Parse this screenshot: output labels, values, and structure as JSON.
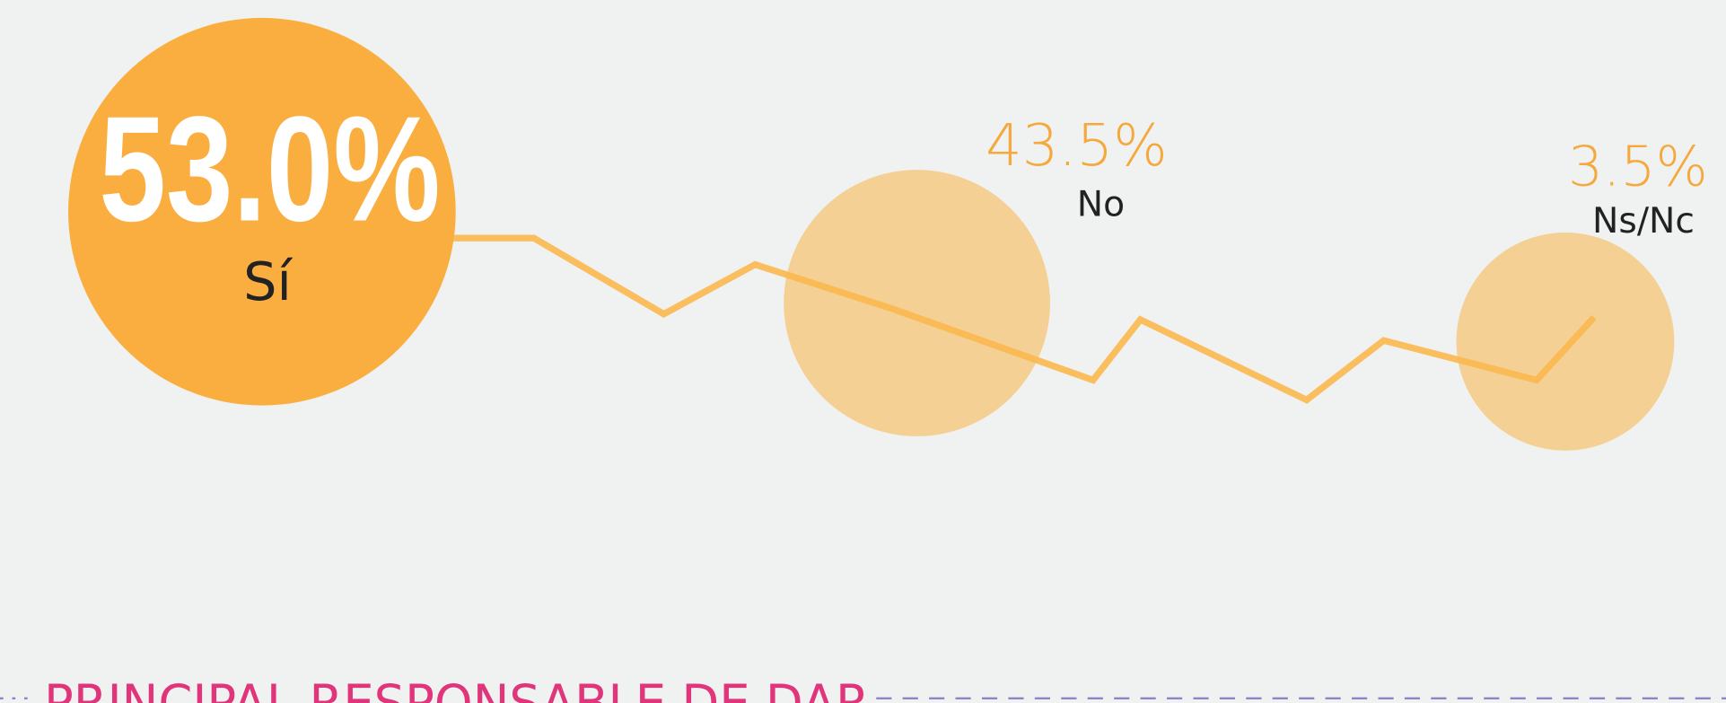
{
  "items": [
    {
      "value": "53.0%",
      "label": "Sí"
    },
    {
      "value": "43.5%",
      "label": "No"
    },
    {
      "value": "3.5%",
      "label": "Ns/Nc"
    }
  ],
  "section_title": "PRINCIPAL RESPONSABLE DE DAR"
}
